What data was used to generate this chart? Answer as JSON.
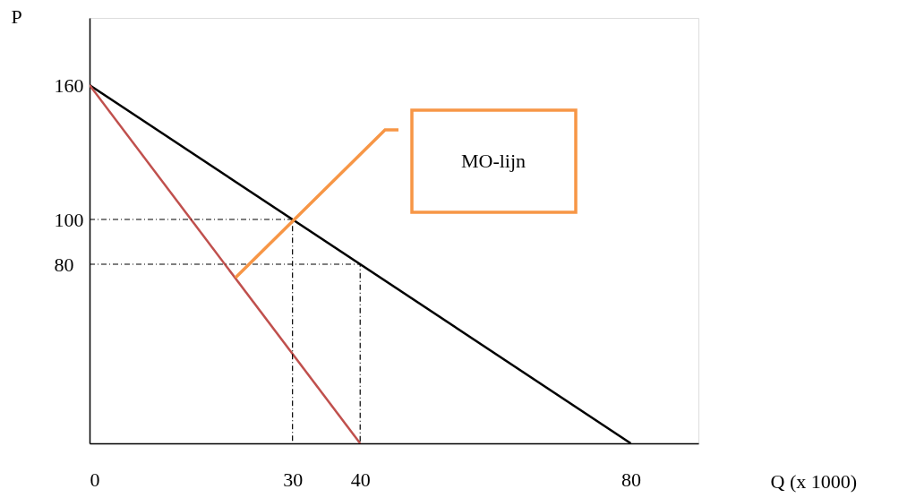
{
  "chart_data": {
    "type": "line",
    "xlabel": "Q (x 1000)",
    "ylabel": "P",
    "xlim": [
      0,
      90
    ],
    "ylim": [
      0,
      190
    ],
    "xticks": [
      0,
      30,
      40,
      80
    ],
    "yticks": [
      80,
      100,
      160
    ],
    "grid": false,
    "series": [
      {
        "x": [
          0,
          80
        ],
        "values": [
          160,
          0
        ],
        "color": "#000000",
        "line_style": "solid"
      },
      {
        "x": [
          0,
          40
        ],
        "values": [
          160,
          0
        ],
        "color": "#c0504d",
        "line_style": "solid"
      },
      {
        "x": [
          0,
          30,
          30
        ],
        "values": [
          100,
          100,
          0
        ],
        "color": "#000000",
        "line_style": "dashed"
      },
      {
        "x": [
          0,
          40,
          40
        ],
        "values": [
          80,
          80,
          0
        ],
        "color": "#000000",
        "line_style": "dashed"
      }
    ],
    "annotations": [
      "MO-lijn"
    ]
  }
}
